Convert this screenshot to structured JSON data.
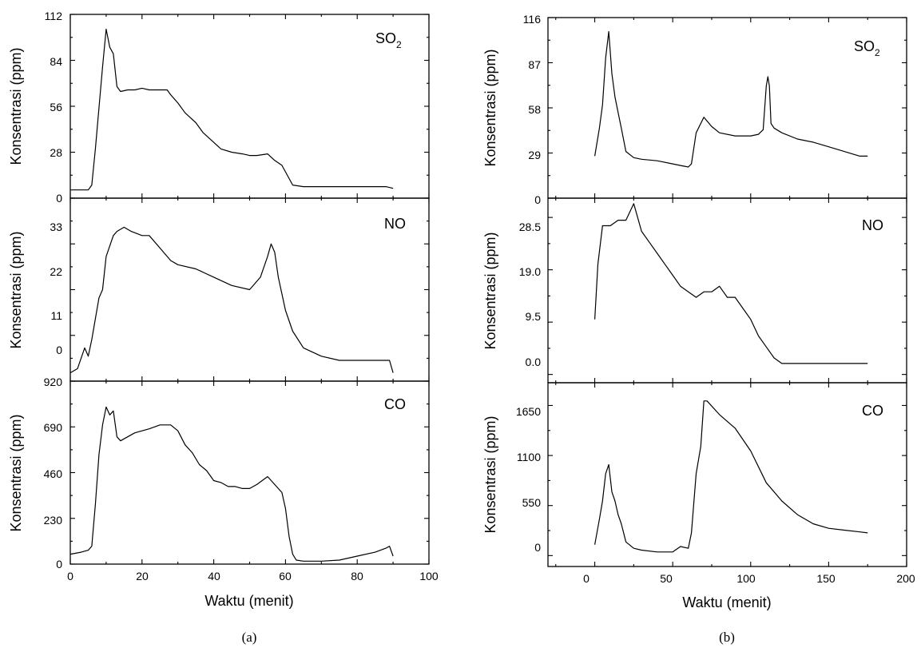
{
  "chart_data": [
    {
      "type": "line",
      "panel": "(a)",
      "xlabel": "Waktu (menit)",
      "xlim": [
        0,
        100
      ],
      "xticks": [
        "0",
        "20",
        "40",
        "60",
        "80",
        "100"
      ],
      "subplots": [
        {
          "ylabel": "Konsentrasi (ppm)",
          "label": "SO",
          "label_sub": "2",
          "ylim": [
            0,
            112
          ],
          "yticks": [
            "0",
            "28",
            "56",
            "84",
            "112"
          ],
          "x": [
            0,
            3,
            5,
            6,
            7,
            8,
            9,
            10,
            11,
            12,
            13,
            14,
            16,
            18,
            20,
            22,
            25,
            27,
            28,
            30,
            32,
            33,
            35,
            37,
            40,
            42,
            45,
            48,
            50,
            52,
            55,
            57,
            59,
            61,
            62,
            65,
            70,
            75,
            80,
            85,
            88,
            90
          ],
          "y": [
            5,
            5,
            5,
            8,
            30,
            55,
            80,
            103,
            92,
            88,
            68,
            65,
            66,
            66,
            67,
            66,
            66,
            66,
            63,
            58,
            52,
            50,
            46,
            40,
            34,
            30,
            28,
            27,
            26,
            26,
            27,
            23,
            20,
            12,
            8,
            7,
            7,
            7,
            7,
            7,
            7,
            6
          ]
        },
        {
          "ylabel": "Konsentrasi (ppm)",
          "label": "NO",
          "label_sub": "",
          "ylim": [
            0,
            44
          ],
          "yticks": [
            "0",
            "11",
            "22",
            "33"
          ],
          "x": [
            0,
            2,
            4,
            5,
            6,
            7,
            8,
            9,
            10,
            12,
            13,
            15,
            17,
            20,
            22,
            25,
            28,
            30,
            35,
            40,
            45,
            50,
            53,
            55,
            56,
            57,
            58,
            60,
            62,
            65,
            70,
            75,
            80,
            85,
            89,
            90
          ],
          "y": [
            2,
            3,
            8,
            6,
            10,
            15,
            20,
            22,
            30,
            35,
            36,
            37,
            36,
            35,
            35,
            32,
            29,
            28,
            27,
            25,
            23,
            22,
            25,
            30,
            33,
            31,
            25,
            17,
            12,
            8,
            6,
            5,
            5,
            5,
            5,
            2
          ]
        },
        {
          "ylabel": "Konsentrasi (ppm)",
          "label": "CO",
          "label_sub": "",
          "ylim": [
            0,
            920
          ],
          "yticks": [
            "0",
            "230",
            "460",
            "690",
            "920"
          ],
          "x": [
            0,
            3,
            5,
            6,
            7,
            8,
            9,
            10,
            11,
            12,
            13,
            14,
            16,
            18,
            20,
            22,
            25,
            28,
            30,
            32,
            34,
            36,
            38,
            40,
            42,
            44,
            46,
            48,
            50,
            52,
            55,
            57,
            59,
            60,
            61,
            62,
            63,
            65,
            70,
            75,
            80,
            85,
            88,
            89,
            90
          ],
          "y": [
            50,
            60,
            70,
            90,
            300,
            550,
            700,
            790,
            750,
            770,
            640,
            620,
            640,
            660,
            670,
            680,
            700,
            700,
            670,
            600,
            560,
            500,
            470,
            420,
            410,
            390,
            390,
            380,
            380,
            400,
            440,
            400,
            360,
            280,
            140,
            50,
            20,
            15,
            15,
            20,
            40,
            60,
            80,
            90,
            40
          ]
        }
      ]
    },
    {
      "type": "line",
      "panel": "(b)",
      "xlabel": "Waktu (menit)",
      "xlim": [
        -30,
        200
      ],
      "xticks": [
        "0",
        "50",
        "100",
        "150",
        "200"
      ],
      "subplots": [
        {
          "ylabel": "Konsentrasi (ppm)",
          "label": "SO",
          "label_sub": "2",
          "ylim": [
            0,
            116
          ],
          "yticks": [
            "0",
            "29",
            "58",
            "87",
            "116"
          ],
          "x": [
            0,
            3,
            5,
            7,
            9,
            11,
            13,
            15,
            17,
            20,
            25,
            30,
            40,
            50,
            55,
            60,
            62,
            65,
            68,
            70,
            75,
            80,
            90,
            100,
            105,
            108,
            110,
            111,
            112,
            113,
            115,
            120,
            130,
            140,
            150,
            160,
            170,
            175
          ],
          "y": [
            27,
            45,
            60,
            90,
            107,
            80,
            65,
            55,
            45,
            30,
            26,
            25,
            24,
            22,
            21,
            20,
            22,
            42,
            48,
            52,
            46,
            42,
            40,
            40,
            41,
            44,
            72,
            78,
            72,
            48,
            45,
            42,
            38,
            36,
            33,
            30,
            27,
            27
          ]
        },
        {
          "ylabel": "Konsentrasi (ppm)",
          "label": "NO",
          "label_sub": "",
          "ylim": [
            -1.5,
            32
          ],
          "yticks": [
            "0.0",
            "9.5",
            "19.0",
            "28.5"
          ],
          "x": [
            0,
            2,
            5,
            10,
            15,
            20,
            25,
            27,
            30,
            35,
            40,
            45,
            50,
            55,
            60,
            65,
            70,
            75,
            80,
            85,
            90,
            95,
            100,
            105,
            110,
            115,
            120,
            125,
            130,
            150,
            175
          ],
          "y": [
            10,
            20,
            27,
            27,
            28,
            28,
            31,
            29,
            26,
            24,
            22,
            20,
            18,
            16,
            15,
            14,
            15,
            15,
            16,
            14,
            14,
            12,
            10,
            7,
            5,
            3,
            2,
            2,
            2,
            2,
            2
          ]
        },
        {
          "ylabel": "Konsentrasi (ppm)",
          "label": "CO",
          "label_sub": "",
          "ylim": [
            -120,
            1900
          ],
          "yticks": [
            "0",
            "550",
            "1100",
            "1650"
          ],
          "x": [
            0,
            3,
            5,
            7,
            9,
            11,
            13,
            15,
            17,
            20,
            25,
            30,
            40,
            50,
            55,
            60,
            62,
            65,
            68,
            70,
            72,
            80,
            90,
            100,
            110,
            120,
            130,
            140,
            150,
            160,
            170,
            175
          ],
          "y": [
            120,
            400,
            600,
            900,
            1000,
            700,
            600,
            450,
            350,
            150,
            80,
            60,
            40,
            40,
            100,
            80,
            250,
            900,
            1200,
            1700,
            1700,
            1550,
            1400,
            1150,
            800,
            600,
            450,
            350,
            300,
            280,
            260,
            250
          ]
        }
      ]
    }
  ]
}
